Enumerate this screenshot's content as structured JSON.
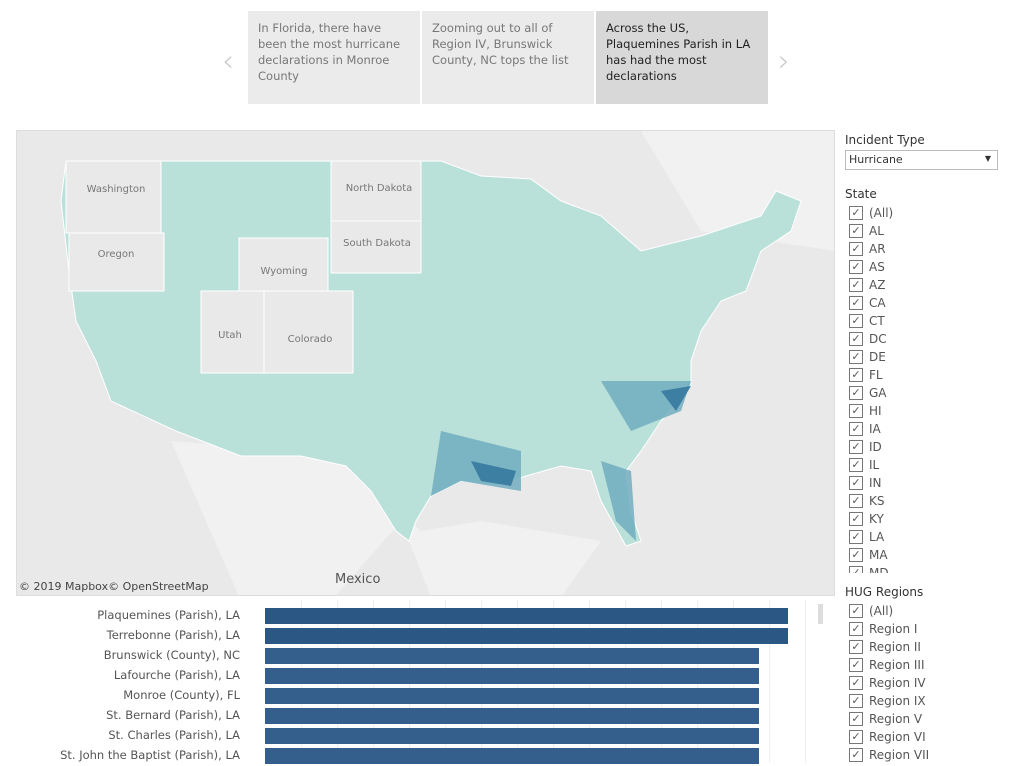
{
  "story": {
    "points": [
      "In Florida, there have been the most hurricane declarations in Monroe County",
      "Zooming out to all of Region IV, Brunswick County, NC tops the list",
      "Across the US, Plaquemines Parish in LA has had the most declarations"
    ],
    "active_index": 2,
    "prev_icon": "chevron-left-icon",
    "next_icon": "chevron-right-icon"
  },
  "map": {
    "state_labels": [
      "Washington",
      "Oregon",
      "Wyoming",
      "Utah",
      "Colorado",
      "North Dakota",
      "South Dakota"
    ],
    "credit": "© 2019 Mapbox© OpenStreetMap",
    "mexico": "Mexico",
    "colors": {
      "low": "#b9e0d9",
      "high": "#3d7fa3",
      "excluded": "#e9e9e9"
    }
  },
  "chart_data": {
    "type": "bar",
    "orientation": "horizontal",
    "categories": [
      "Plaquemines (Parish), LA",
      "Terrebonne (Parish), LA",
      "Brunswick (County), NC",
      "Lafourche (Parish), LA",
      "Monroe (County), FL",
      "St. Bernard (Parish), LA",
      "St. Charles (Parish), LA",
      "St. John the Baptist (Parish), LA"
    ],
    "values": [
      18,
      18,
      17,
      17,
      17,
      17,
      17,
      17
    ],
    "xlim": [
      0,
      18
    ],
    "colors": [
      "#2b5784",
      "#2b5784",
      "#345f8c",
      "#345f8c",
      "#345f8c",
      "#345f8c",
      "#345f8c",
      "#345f8c"
    ]
  },
  "filters": {
    "incident_type": {
      "title": "Incident Type",
      "value": "Hurricane"
    },
    "state": {
      "title": "State",
      "items": [
        "(All)",
        "AL",
        "AR",
        "AS",
        "AZ",
        "CA",
        "CT",
        "DC",
        "DE",
        "FL",
        "GA",
        "HI",
        "IA",
        "ID",
        "IL",
        "IN",
        "KS",
        "KY",
        "LA",
        "MA",
        "MD"
      ]
    },
    "regions": {
      "title": "HUG Regions",
      "items": [
        "(All)",
        "Region I",
        "Region II",
        "Region III",
        "Region IV",
        "Region IX",
        "Region V",
        "Region VI",
        "Region VII"
      ]
    }
  }
}
